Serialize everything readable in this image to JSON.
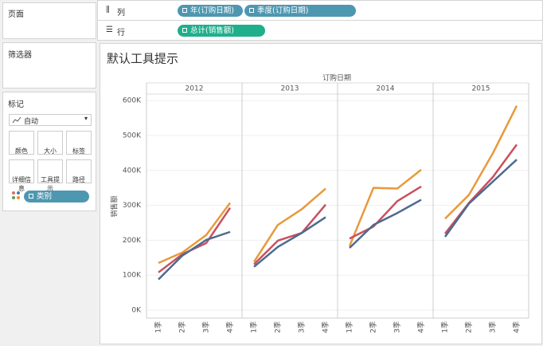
{
  "sidebar": {
    "pages": "页面",
    "filters": "筛选器",
    "marks": {
      "title": "标记",
      "mark_type": "自动",
      "buttons": [
        "颜色",
        "大小",
        "标签",
        "详细信息",
        "工具提示",
        "路径"
      ],
      "field": "类别"
    }
  },
  "shelves": {
    "columns": {
      "label": "列",
      "pills": [
        "年(订购日期)",
        "季度(订购日期)"
      ]
    },
    "rows": {
      "label": "行",
      "pills": [
        "总计(销售额)"
      ]
    }
  },
  "chart_data": {
    "type": "line",
    "title": "默认工具提示",
    "x_title": "订购日期",
    "y_title": "销售额",
    "ylim": [
      0,
      620000
    ],
    "yticks": [
      {
        "value": 0,
        "label": "0K"
      },
      {
        "value": 100000,
        "label": "100K"
      },
      {
        "value": 200000,
        "label": "200K"
      },
      {
        "value": 300000,
        "label": "300K"
      },
      {
        "value": 400000,
        "label": "400K"
      },
      {
        "value": 500000,
        "label": "500K"
      },
      {
        "value": 600000,
        "label": "600K"
      }
    ],
    "grid": true,
    "series_colors": [
      "#e8993b",
      "#c9505e",
      "#4e6a8f"
    ],
    "panels": [
      {
        "label": "2012",
        "categories": [
          "1季",
          "2季",
          "3季",
          "4季"
        ],
        "series": [
          {
            "values": [
              135000,
              165000,
              215000,
              307000
            ]
          },
          {
            "values": [
              108000,
              160000,
              192000,
              293000
            ]
          },
          {
            "values": [
              88000,
              156000,
              201000,
              224000
            ]
          }
        ]
      },
      {
        "label": "2013",
        "categories": [
          "1季",
          "2季",
          "3季",
          "4季"
        ],
        "series": [
          {
            "values": [
              138000,
              244000,
              289000,
              348000
            ]
          },
          {
            "values": [
              131000,
              199000,
              221000,
              302000
            ]
          },
          {
            "values": [
              124000,
              181000,
              221000,
              266000
            ]
          }
        ]
      },
      {
        "label": "2014",
        "categories": [
          "1季",
          "2季",
          "3季",
          "4季"
        ],
        "series": [
          {
            "values": [
              183000,
              350000,
              348000,
              402000
            ]
          },
          {
            "values": [
              205000,
              239000,
              312000,
              354000
            ]
          },
          {
            "values": [
              178000,
              244000,
              278000,
              316000
            ]
          }
        ]
      },
      {
        "label": "2015",
        "categories": [
          "1季",
          "2季",
          "3季",
          "4季"
        ],
        "series": [
          {
            "values": [
              262000,
              330000,
              449000,
              585000
            ]
          },
          {
            "values": [
              219000,
              307000,
              381000,
              474000
            ]
          },
          {
            "values": [
              210000,
              305000,
              368000,
              431000
            ]
          }
        ]
      }
    ]
  }
}
